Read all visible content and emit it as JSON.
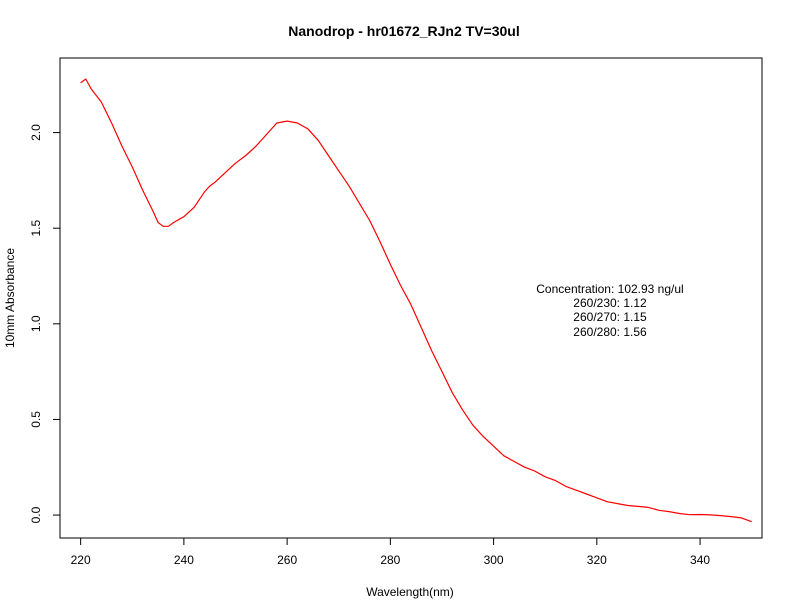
{
  "chart_data": {
    "type": "line",
    "title": "Nanodrop - hr01672_RJn2 TV=30ul",
    "xlabel": "Wavelength(nm)",
    "ylabel": "10mm Absorbance",
    "xlim": [
      216,
      352
    ],
    "ylim": [
      -0.12,
      2.39
    ],
    "xticks": [
      220,
      240,
      260,
      280,
      300,
      320,
      340
    ],
    "yticks": [
      0.0,
      0.5,
      1.0,
      1.5,
      2.0
    ],
    "xtick_labels": [
      "220",
      "240",
      "260",
      "280",
      "300",
      "320",
      "340"
    ],
    "ytick_labels": [
      "0.0",
      "0.5",
      "1.0",
      "1.5",
      "2.0"
    ],
    "grid": false,
    "series": [
      {
        "color": "#ff0000",
        "x": [
          220,
          221,
          222,
          224,
          226,
          228,
          230,
          232,
          234,
          235,
          236,
          237,
          238,
          240,
          242,
          244,
          245,
          246,
          248,
          250,
          252,
          254,
          256,
          258,
          260,
          262,
          264,
          266,
          268,
          270,
          272,
          274,
          276,
          278,
          280,
          282,
          284,
          286,
          288,
          290,
          292,
          294,
          296,
          298,
          300,
          302,
          304,
          306,
          308,
          310,
          312,
          314,
          316,
          318,
          320,
          322,
          324,
          326,
          328,
          330,
          332,
          334,
          336,
          338,
          340,
          342,
          344,
          346,
          348,
          350
        ],
        "y": [
          2.26,
          2.28,
          2.23,
          2.16,
          2.05,
          1.93,
          1.82,
          1.7,
          1.59,
          1.53,
          1.51,
          1.51,
          1.53,
          1.56,
          1.61,
          1.69,
          1.72,
          1.74,
          1.79,
          1.84,
          1.88,
          1.93,
          1.99,
          2.05,
          2.06,
          2.05,
          2.02,
          1.96,
          1.88,
          1.8,
          1.72,
          1.63,
          1.54,
          1.43,
          1.31,
          1.2,
          1.1,
          0.98,
          0.86,
          0.75,
          0.64,
          0.55,
          0.47,
          0.41,
          0.36,
          0.31,
          0.28,
          0.25,
          0.23,
          0.2,
          0.18,
          0.15,
          0.13,
          0.11,
          0.09,
          0.07,
          0.06,
          0.05,
          0.045,
          0.04,
          0.025,
          0.018,
          0.008,
          0.002,
          0.003,
          0.001,
          -0.003,
          -0.008,
          -0.015,
          -0.035
        ]
      }
    ],
    "annotations": [
      "Concentration: 102.93 ng/ul",
      "260/230: 1.12",
      "260/270: 1.15",
      "260/280: 1.56"
    ]
  }
}
